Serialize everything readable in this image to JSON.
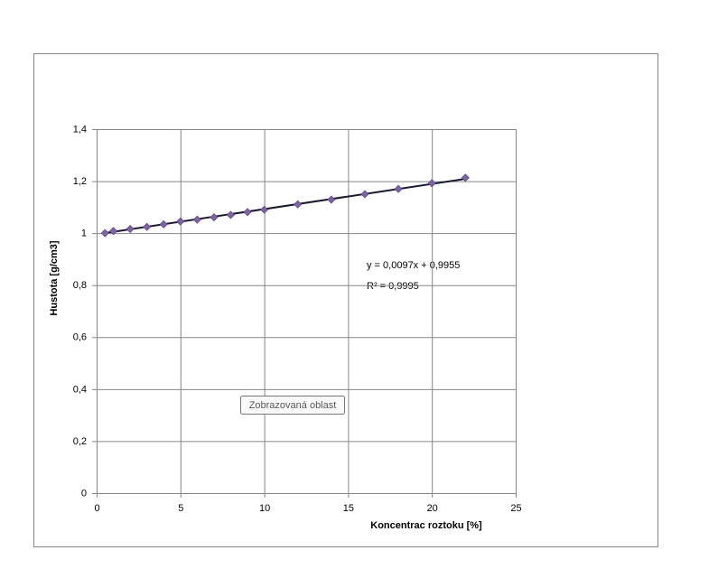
{
  "chart_data": {
    "type": "scatter",
    "x_label": "Koncentrac roztoku [%]",
    "y_label": "Hustota   [g/cm3]",
    "xlim": [
      0,
      25
    ],
    "xticks": [
      0,
      5,
      10,
      15,
      20,
      25
    ],
    "ylim": [
      0,
      1.4
    ],
    "yticks": [
      0,
      {
        "value": 0.2,
        "label": "0,2"
      },
      {
        "value": 0.4,
        "label": "0,4"
      },
      {
        "value": 0.6,
        "label": "0,6"
      },
      {
        "value": 0.8,
        "label": "0,8"
      },
      1,
      {
        "value": 1.2,
        "label": "1,2"
      },
      {
        "value": 1.4,
        "label": "1,4"
      }
    ],
    "grid": true,
    "series": [
      {
        "color": "#8064a2",
        "x": [
          0.5,
          1,
          2,
          3,
          4,
          5,
          6,
          7,
          8,
          9,
          10,
          12,
          14,
          16,
          18,
          20,
          22
        ],
        "values": [
          1.0,
          1.008,
          1.016,
          1.024,
          1.034,
          1.045,
          1.052,
          1.061,
          1.07,
          1.081,
          1.09,
          1.111,
          1.129,
          1.15,
          1.17,
          1.192,
          1.213
        ]
      }
    ],
    "trendline": {
      "slope": 0.0097,
      "intercept": 0.9955,
      "color": "#1a1a2e",
      "equation": "y = 0,0097x + 0,9955",
      "r2": "R² = 0,9995"
    },
    "tooltip": "Zobrazovaná oblast"
  }
}
